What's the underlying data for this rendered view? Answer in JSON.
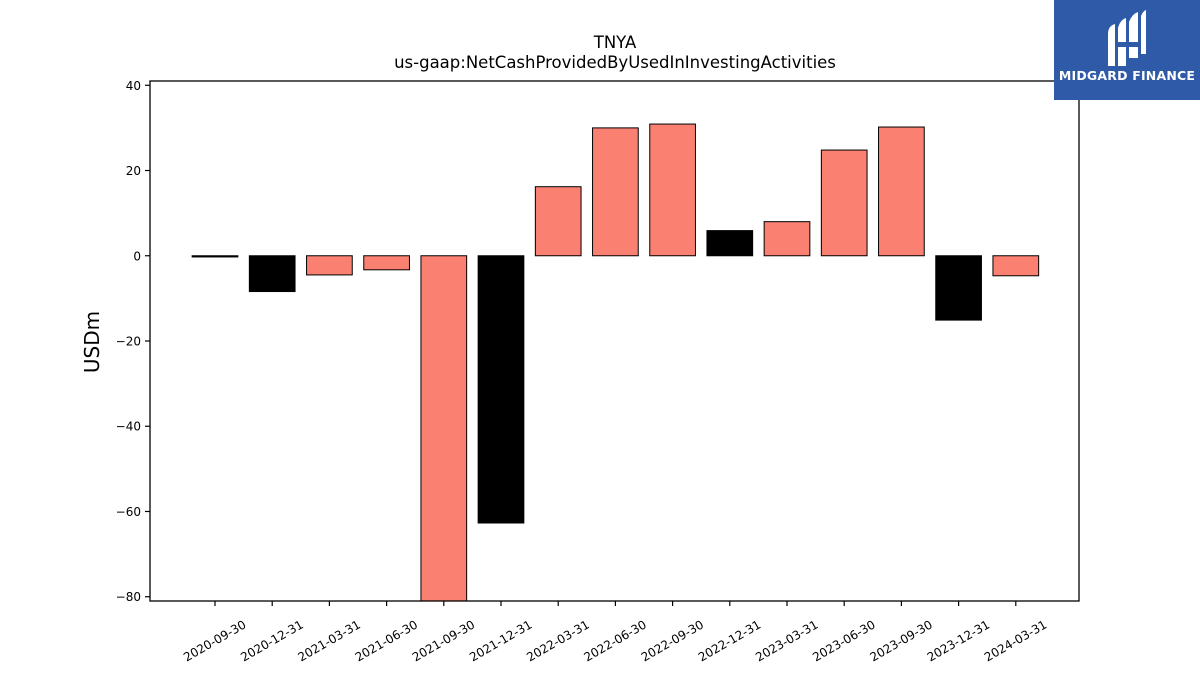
{
  "brand": {
    "name": "MIDGARD FINANCE",
    "color": "#2f5aa8"
  },
  "chart_data": {
    "type": "bar",
    "title": "TNYA",
    "subtitle": "us-gaap:NetCashProvidedByUsedInInvestingActivities",
    "xlabel": "",
    "ylabel": "USDm",
    "ylim": [
      -81,
      41
    ],
    "yticks": [
      40,
      20,
      0,
      -20,
      -40,
      -60,
      -80
    ],
    "grid": false,
    "categories": [
      "2020-09-30",
      "2020-12-31",
      "2021-03-31",
      "2021-06-30",
      "2021-09-30",
      "2021-12-31",
      "2022-03-31",
      "2022-06-30",
      "2022-09-30",
      "2022-12-31",
      "2023-03-31",
      "2023-06-30",
      "2023-09-30",
      "2023-12-31",
      "2024-03-31"
    ],
    "values": [
      -0.2,
      -8.4,
      -4.5,
      -3.3,
      -82.0,
      -62.7,
      16.2,
      30.0,
      30.9,
      5.9,
      8.0,
      24.8,
      30.2,
      -15.1,
      -4.7
    ],
    "bar_colors": [
      "#000000",
      "#000000",
      "#fa8072",
      "#fa8072",
      "#fa8072",
      "#000000",
      "#fa8072",
      "#fa8072",
      "#fa8072",
      "#000000",
      "#fa8072",
      "#fa8072",
      "#fa8072",
      "#000000",
      "#fa8072"
    ],
    "colors": {
      "salmon": "#fa8072",
      "black": "#000000"
    }
  }
}
